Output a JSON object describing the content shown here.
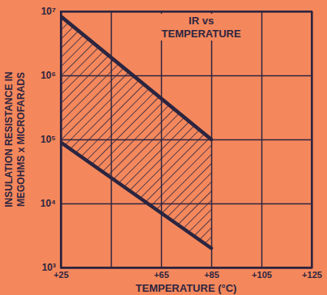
{
  "chart_data": {
    "type": "area",
    "title": "IR vs\nTEMPERATURE",
    "x_label": "TEMPERATURE (°C)",
    "y_label": "INSULATION RESISTANCE IN\nMEGOHMS x MICROFARADS",
    "x": [
      25,
      85
    ],
    "series": [
      {
        "color": "#2b2540",
        "values": [
          8400000,
          100000
        ]
      },
      {
        "color": "#2b2540",
        "values": [
          90000,
          2000
        ]
      }
    ],
    "xlim": [
      25,
      125
    ],
    "xticks": [
      {
        "value": 25,
        "label": "+25"
      },
      {
        "value": 45,
        "label": null
      },
      {
        "value": 65,
        "label": "+65"
      },
      {
        "value": 85,
        "label": "+85"
      },
      {
        "value": 105,
        "label": "+105"
      },
      {
        "value": 125,
        "label": "+125"
      }
    ],
    "ylim": [
      1000,
      10000000
    ],
    "yticks": [
      {
        "value": 1000,
        "label": "10³"
      },
      {
        "value": 10000,
        "label": "10⁴"
      },
      {
        "value": 100000,
        "label": "10⁵"
      },
      {
        "value": 1000000,
        "label": "10⁶"
      },
      {
        "value": 10000000,
        "label": "10⁷"
      }
    ],
    "log": "y",
    "grid": true
  }
}
